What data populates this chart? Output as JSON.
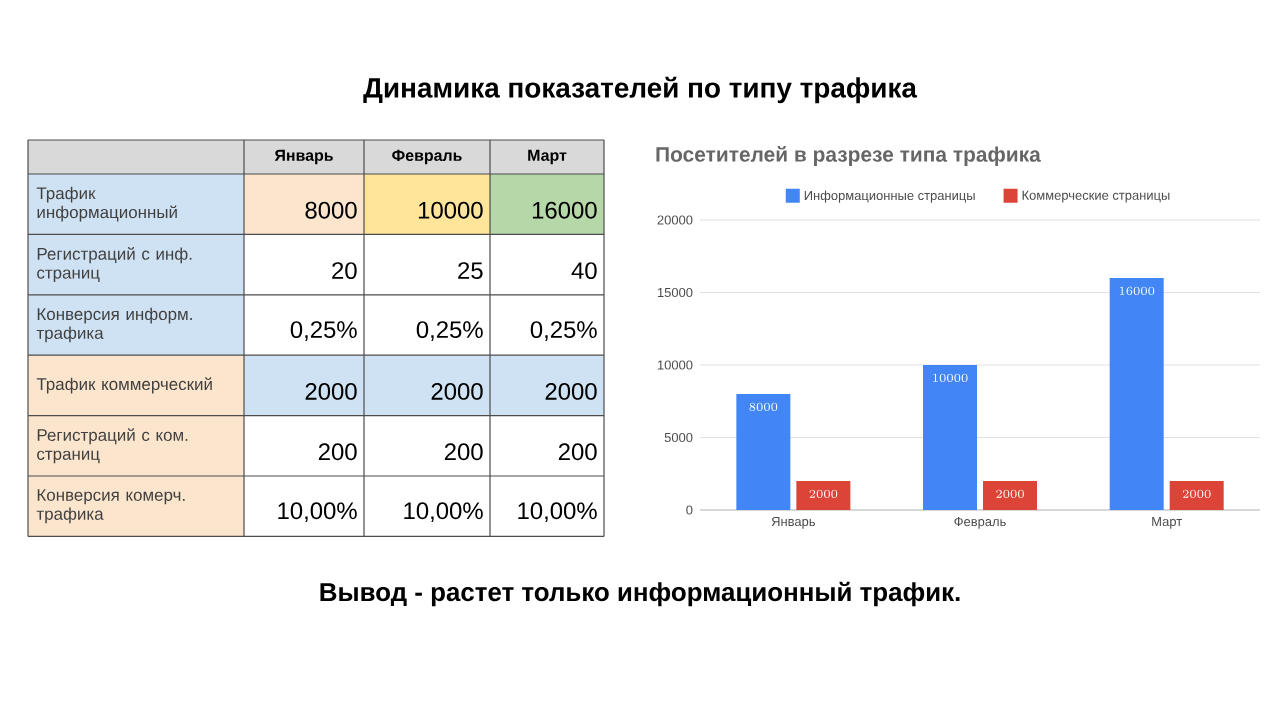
{
  "chart_data": [
    {
      "type": "other",
      "title": "Динамика показателей по типу трафика",
      "categories": [
        "Январь",
        "Февраль",
        "Март"
      ],
      "y_categories": [
        "Трафик информационный",
        "Регистраций с инф. страниц",
        "Конверсия информ. трафика",
        "Трафик коммерческий",
        "Регистраций с ком. страниц",
        "Конверсия комерч. трафика"
      ],
      "cell_labels": [
        [
          "8000",
          "10000",
          "16000"
        ],
        [
          "20",
          "25",
          "40"
        ],
        [
          "0,25%",
          "0,25%",
          "0,25%"
        ],
        [
          "2000",
          "2000",
          "2000"
        ],
        [
          "200",
          "200",
          "200"
        ],
        [
          "10,00%",
          "10,00%",
          "10,00%"
        ]
      ],
      "colors": [
        [
          "#d9d9d9",
          "#d9d9d9",
          "#d9d9d9",
          "#d9d9d9"
        ],
        [
          "#cfe2f3",
          "#fce5cd",
          "#ffe599",
          "#b6d7a8"
        ],
        [
          "#cfe2f3",
          "#ffffff",
          "#ffffff",
          "#ffffff"
        ],
        [
          "#cfe2f3",
          "#ffffff",
          "#ffffff",
          "#ffffff"
        ],
        [
          "#fce5cd",
          "#cfe2f3",
          "#cfe2f3",
          "#cfe2f3"
        ],
        [
          "#fce5cd",
          "#ffffff",
          "#ffffff",
          "#ffffff"
        ],
        [
          "#fce5cd",
          "#ffffff",
          "#ffffff",
          "#ffffff"
        ]
      ],
      "annotations": [
        "Вывод - растет только информационный трафик."
      ]
    },
    {
      "type": "bar",
      "title": "Посетителей в разрезе типа трафика",
      "categories": [
        "Январь",
        "Февраль",
        "Март"
      ],
      "series": [
        {
          "name": "Информационные страницы",
          "color": "#4285f4",
          "values": [
            8000,
            10000,
            16000
          ]
        },
        {
          "name": "Коммерческие страницы",
          "color": "#db4437",
          "values": [
            2000,
            2000,
            2000
          ]
        }
      ],
      "ylim": [
        0,
        20000
      ],
      "yticks": [
        0,
        5000,
        10000,
        15000,
        20000
      ],
      "grid": "y",
      "legend": "top",
      "data_labels": true
    }
  ]
}
